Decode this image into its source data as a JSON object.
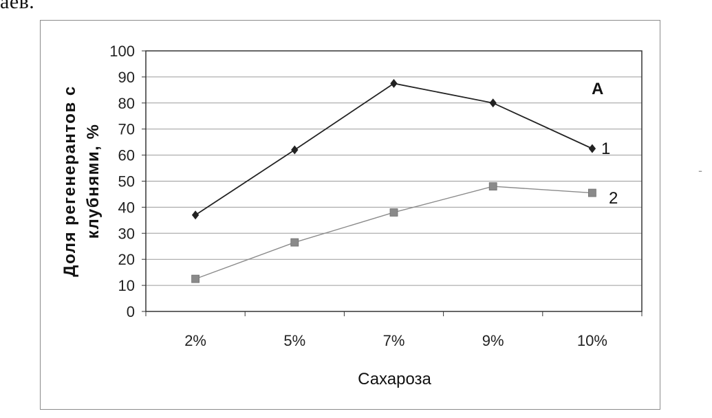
{
  "page_fragment": "аев.",
  "right_margin_mark": "-",
  "chart_data": {
    "type": "line",
    "categories": [
      "2%",
      "5%",
      "7%",
      "9%",
      "10%"
    ],
    "series": [
      {
        "name": "1",
        "values": [
          37,
          62,
          87.5,
          80,
          62.5
        ],
        "color": "#222222",
        "marker": "diamond"
      },
      {
        "name": "2",
        "values": [
          12.5,
          26.5,
          38,
          48,
          45.5
        ],
        "color": "#8a8a8a",
        "marker": "square"
      }
    ],
    "yticks": [
      "0",
      "10",
      "20",
      "30",
      "40",
      "50",
      "60",
      "70",
      "80",
      "90",
      "100"
    ],
    "ylim": [
      0,
      100
    ],
    "xlabel": "Сахароза",
    "ylabel_lines": [
      "Доля регенерантов с",
      "клубнями, %"
    ],
    "panel_label": "А",
    "grid": true
  }
}
